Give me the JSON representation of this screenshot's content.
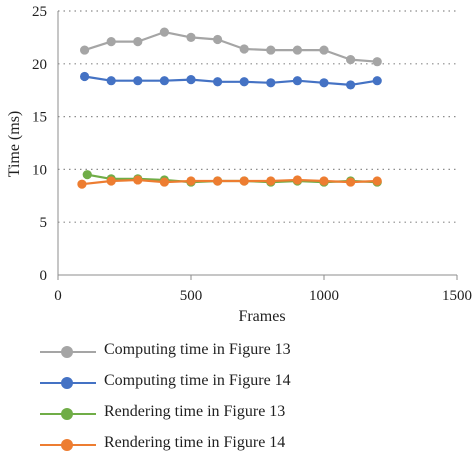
{
  "chart_data": {
    "type": "line",
    "xlabel": "Frames",
    "ylabel": "Time (ms)",
    "xlim": [
      0,
      1500
    ],
    "ylim": [
      0,
      25
    ],
    "xticks": [
      0,
      500,
      1000,
      1500
    ],
    "yticks": [
      0,
      5,
      10,
      15,
      20,
      25
    ],
    "grid": "horizontal dotted",
    "legend_position": "bottom",
    "series": [
      {
        "name": "Computing time in Figure 13",
        "color": "#a5a5a5",
        "x": [
          100,
          200,
          300,
          400,
          500,
          600,
          700,
          800,
          900,
          1000,
          1100,
          1200
        ],
        "y": [
          21.3,
          22.1,
          22.1,
          23.0,
          22.5,
          22.3,
          21.4,
          21.3,
          21.3,
          21.3,
          20.4,
          20.2
        ]
      },
      {
        "name": "Computing time in Figure 14",
        "color": "#4472c4",
        "x": [
          100,
          200,
          300,
          400,
          500,
          600,
          700,
          800,
          900,
          1000,
          1100,
          1200
        ],
        "y": [
          18.8,
          18.4,
          18.4,
          18.4,
          18.5,
          18.3,
          18.3,
          18.2,
          18.4,
          18.2,
          18.0,
          18.4
        ]
      },
      {
        "name": "Rendering time in Figure 13",
        "color": "#70ad47",
        "x": [
          110,
          200,
          300,
          400,
          500,
          600,
          700,
          800,
          900,
          1000,
          1100,
          1200
        ],
        "y": [
          9.5,
          9.1,
          9.1,
          9.0,
          8.8,
          8.9,
          8.9,
          8.8,
          8.9,
          8.8,
          8.9,
          8.8
        ]
      },
      {
        "name": "Rendering time in Figure 14",
        "color": "#ed7d31",
        "x": [
          90,
          200,
          300,
          400,
          500,
          600,
          700,
          800,
          900,
          1000,
          1100,
          1200
        ],
        "y": [
          8.6,
          8.9,
          9.0,
          8.8,
          8.9,
          8.9,
          8.9,
          8.9,
          9.0,
          8.9,
          8.8,
          8.9
        ]
      }
    ]
  }
}
